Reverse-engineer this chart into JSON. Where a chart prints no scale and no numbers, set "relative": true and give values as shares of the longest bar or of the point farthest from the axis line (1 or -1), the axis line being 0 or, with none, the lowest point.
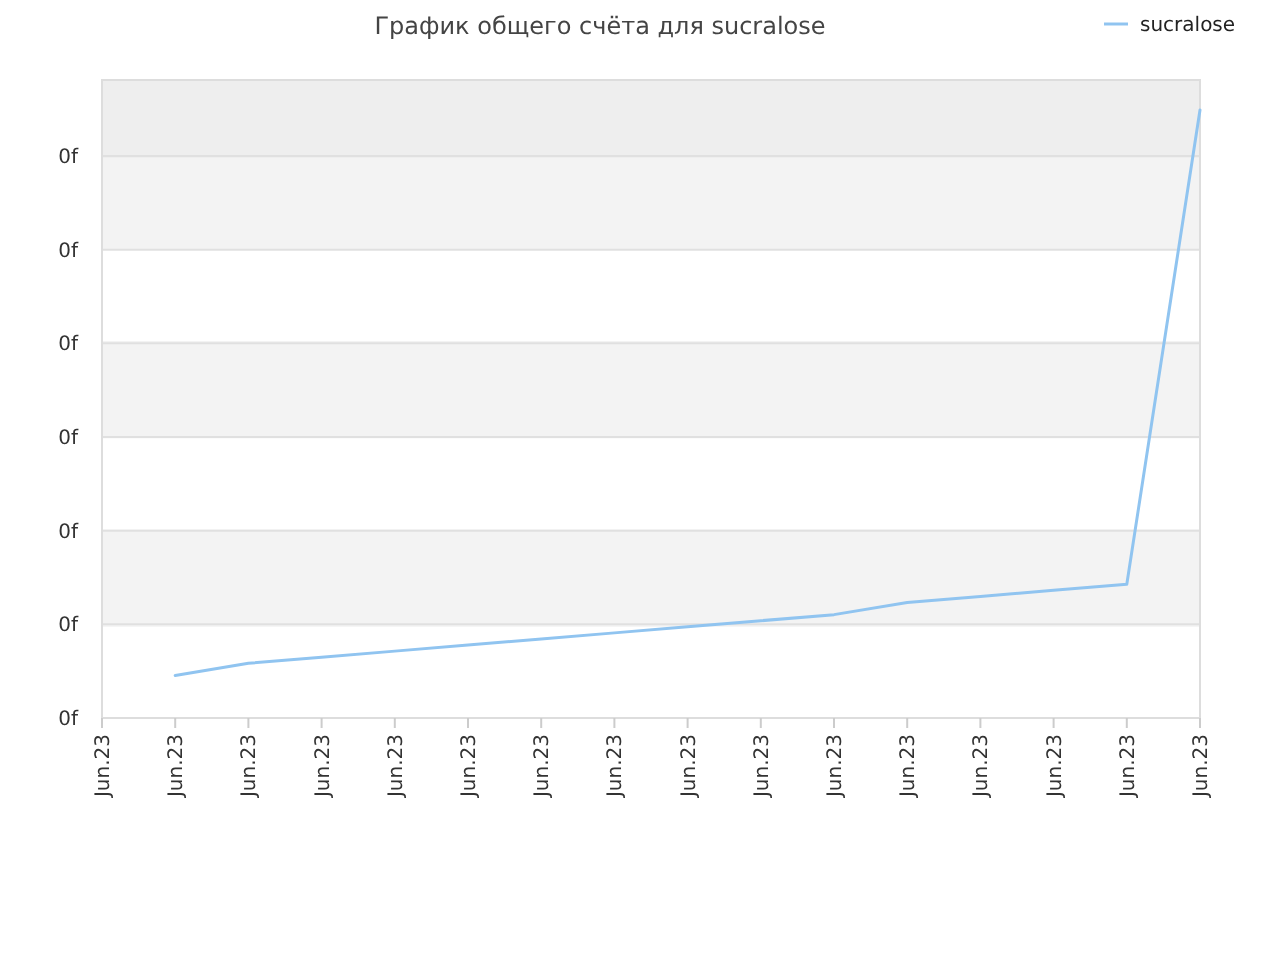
{
  "chart_data": {
    "type": "line",
    "title": "График общего счёта для sucralose",
    "relative": true,
    "categories": [
      "Jun.23",
      "Jun.23",
      "Jun.23",
      "Jun.23",
      "Jun.23",
      "Jun.23",
      "Jun.23",
      "Jun.23",
      "Jun.23",
      "Jun.23",
      "Jun.23",
      "Jun.23",
      "Jun.23",
      "Jun.23",
      "Jun.23",
      "Jun.23"
    ],
    "annotations": [
      "0f",
      "0f",
      "0f",
      "0f",
      "0f",
      "0f",
      "0f"
    ],
    "bands": [
      {
        "axis": "y",
        "from": 0.15,
        "to": 0.31,
        "color": "#f3f3f3"
      },
      {
        "axis": "y",
        "from": 0.46,
        "to": 0.62,
        "color": "#f3f3f3"
      },
      {
        "axis": "y",
        "from": 0.77,
        "to": 0.92,
        "color": "#f3f3f3"
      },
      {
        "axis": "y",
        "from": 0.92,
        "to": 1.05,
        "color": "#eeeeee"
      }
    ],
    "grid": "y",
    "legend": "top right",
    "line_style": "solid",
    "series": [
      {
        "name": "sucralose",
        "color": "#90c4f0",
        "values": [
          null,
          0.07,
          0.09,
          0.1,
          0.11,
          0.12,
          0.13,
          0.14,
          0.15,
          0.16,
          0.17,
          0.19,
          0.2,
          0.21,
          0.22,
          1
        ]
      }
    ]
  }
}
